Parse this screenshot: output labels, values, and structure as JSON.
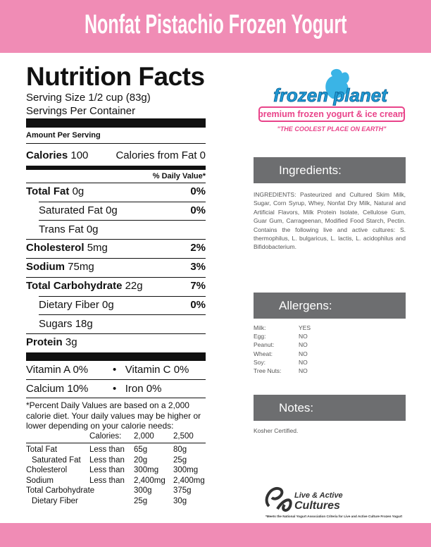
{
  "header": {
    "title": "Nonfat Pistachio Frozen Yogurt"
  },
  "nutrition": {
    "title": "Nutrition Facts",
    "serving_size": "Serving Size 1/2 cup (83g)",
    "servings_per_container": "Servings Per Container",
    "amount_per_serving": "Amount Per Serving",
    "calories": {
      "label": "Calories",
      "value": "100",
      "fat_label": "Calories from Fat",
      "fat_value": "0"
    },
    "daily_value_header": "% Daily Value*",
    "rows": [
      {
        "label": "Total Fat",
        "amount": "0g",
        "dv": "0%"
      },
      {
        "label": "Saturated Fat",
        "amount": "0g",
        "dv": "0%"
      },
      {
        "label": "Trans Fat",
        "amount": "0g"
      },
      {
        "label": "Cholesterol",
        "amount": "5mg",
        "dv": "2%"
      },
      {
        "label": "Sodium",
        "amount": "75mg",
        "dv": "3%"
      },
      {
        "label": "Total Carbohydrate",
        "amount": "22g",
        "dv": "7%"
      },
      {
        "label": "Dietary Fiber",
        "amount": "0g",
        "dv": "0%"
      },
      {
        "label": "Sugars",
        "amount": "18g"
      },
      {
        "label": "Protein",
        "amount": "3g"
      }
    ],
    "vitamins": [
      {
        "name": "Vitamin A",
        "value": "0%"
      },
      {
        "name": "Vitamin C",
        "value": "0%"
      },
      {
        "name": "Calcium",
        "value": "10%"
      },
      {
        "name": "Iron",
        "value": "0%"
      }
    ],
    "footnote": "*Percent Daily Values are based on a 2,000 calorie diet. Your daily values may be higher or lower depending on your calorie needs:",
    "dv_table": {
      "header": [
        "Calories:",
        "2,000",
        "2,500"
      ],
      "rows": [
        {
          "nutrient": "Total Fat",
          "limit": "Less than",
          "v2000": "65g",
          "v2500": "80g"
        },
        {
          "nutrient": "Saturated Fat",
          "limit": "Less than",
          "v2000": "20g",
          "v2500": "25g"
        },
        {
          "nutrient": "Cholesterol",
          "limit": "Less than",
          "v2000": "300mg",
          "v2500": "300mg"
        },
        {
          "nutrient": "Sodium",
          "limit": "Less than",
          "v2000": "2,400mg",
          "v2500": "2,400mg"
        },
        {
          "nutrient": "Total Carbohydrate",
          "v2000": "300g",
          "v2500": "375g"
        },
        {
          "nutrient": "Dietary Fiber",
          "v2000": "25g",
          "v2500": "30g"
        }
      ]
    }
  },
  "logo": {
    "brand": "frozen planet",
    "tagline": "premium frozen yogurt & ice cream",
    "slogan": "\"THE COOLEST PLACE ON EARTH\""
  },
  "ingredients": {
    "heading": "Ingredients:",
    "text": "INGREDIENTS: Pasteurized and Cultured Skim Milk, Sugar, Corn Syrup, Whey, Nonfat Dry Milk, Natural and Artificial Flavors, Milk Protein Isolate, Cellulose Gum, Guar Gum, Carrageenan, Modified Food Starch, Pectin. Contains the following live and active cultures: S. thermophilus, L. bulgaricus, L. lactis, L. acidophilus and Bifidobacterium."
  },
  "allergens": {
    "heading": "Allergens:",
    "items": [
      {
        "name": "Milk:",
        "value": "YES"
      },
      {
        "name": "Egg:",
        "value": "NO"
      },
      {
        "name": "Peanut:",
        "value": "NO"
      },
      {
        "name": "Wheat:",
        "value": "NO"
      },
      {
        "name": "Soy:",
        "value": "NO"
      },
      {
        "name": "Tree Nuts:",
        "value": "NO"
      }
    ]
  },
  "notes": {
    "heading": "Notes:",
    "text": "Kosher Certified."
  },
  "cultures_seal": {
    "line1": "Live & Active",
    "line2": "Cultures",
    "footnote": "*Meets the National Yogurt Association Criteria for Live and Active Culture Frozen Yogurt"
  }
}
